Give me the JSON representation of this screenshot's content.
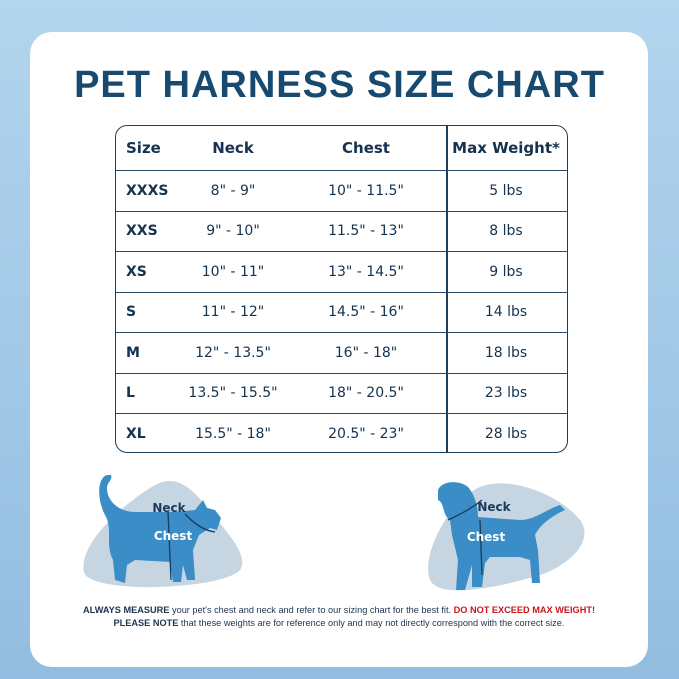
{
  "title": "PET HARNESS SIZE CHART",
  "table": {
    "headers": [
      "Size",
      "Neck",
      "Chest",
      "Max Weight*"
    ],
    "rows": [
      [
        "XXXS",
        "8\" - 9\"",
        "10\" - 11.5\"",
        "5 lbs"
      ],
      [
        "XXS",
        "9\" - 10\"",
        "11.5\" - 13\"",
        "8 lbs"
      ],
      [
        "XS",
        "10\" - 11\"",
        "13\" - 14.5\"",
        "9 lbs"
      ],
      [
        "S",
        "11\" - 12\"",
        "14.5\" - 16\"",
        "14 lbs"
      ],
      [
        "M",
        "12\" - 13.5\"",
        "16\" - 18\"",
        "18 lbs"
      ],
      [
        "L",
        "13.5\" - 15.5\"",
        "18\" - 20.5\"",
        "23 lbs"
      ],
      [
        "XL",
        "15.5\" - 18\"",
        "20.5\" - 23\"",
        "28 lbs"
      ]
    ]
  },
  "illustrations": {
    "cat": {
      "neck_label": "Neck",
      "chest_label": "Chest",
      "icon": "cat-silhouette-icon"
    },
    "dog": {
      "neck_label": "Neck",
      "chest_label": "Chest",
      "icon": "dog-silhouette-icon"
    }
  },
  "note": {
    "line1_bold": "ALWAYS MEASURE",
    "line1_text": " your pet's chest and neck and refer  to our sizing chart for the best fit. ",
    "line1_warning": "DO NOT EXCEED MAX WEIGHT!",
    "line2_bold": "PLEASE NOTE",
    "line2_text": " that these weights are for reference only and may not directly correspond with the correct size."
  },
  "colors": {
    "title": "#174a6e",
    "text": "#15324f",
    "pet": "#3a8dc6",
    "blob": "#c5d6e2",
    "warning": "#c8161d"
  }
}
